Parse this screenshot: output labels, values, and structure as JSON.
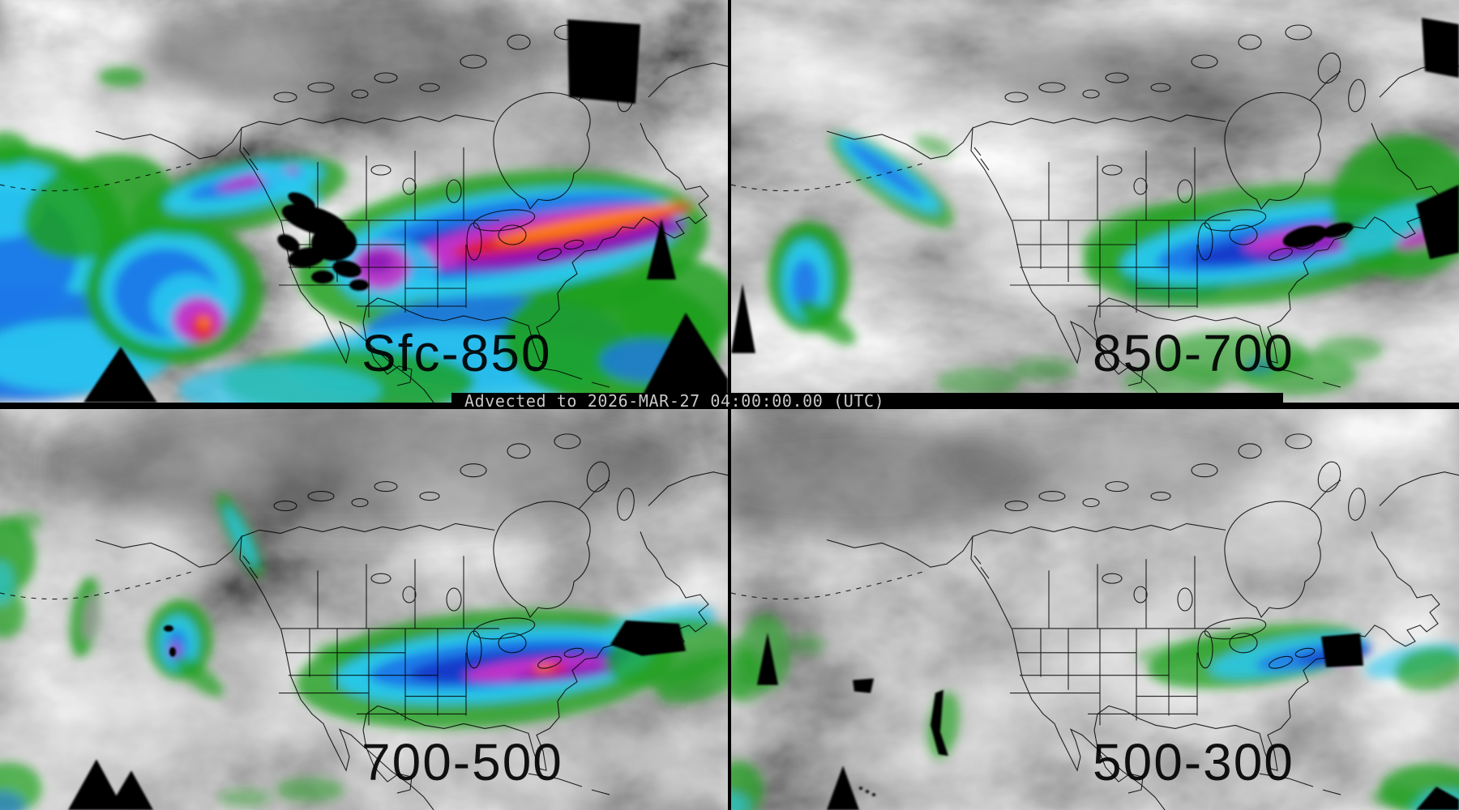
{
  "banner": {
    "text": "Advected to 2026-MAR-27 04:00:00.00 (UTC)"
  },
  "panels": [
    {
      "id": "sfc-850",
      "label": "Sfc-850"
    },
    {
      "id": "850-700",
      "label": "850-700"
    },
    {
      "id": "700-500",
      "label": "700-500"
    },
    {
      "id": "500-300",
      "label": "500-300"
    }
  ],
  "palette": {
    "dry_gray_low": "#303030",
    "dry_gray_high": "#f0f0f0",
    "green": "#1ea01e",
    "cyan": "#29c8f0",
    "blue": "#1f78e8",
    "deep_blue": "#1434c8",
    "magenta": "#c832c8",
    "purple": "#8c14b4",
    "red": "#e01e28",
    "orange": "#ff8214",
    "missing_black": "#000000",
    "shade_white": "#f0f0f0",
    "shade_dark": "#4a4a4a",
    "gray": "#9a9a9a",
    "banner_bg": "#000000",
    "banner_fg": "#c8c8c8",
    "label_color": "#000000"
  }
}
